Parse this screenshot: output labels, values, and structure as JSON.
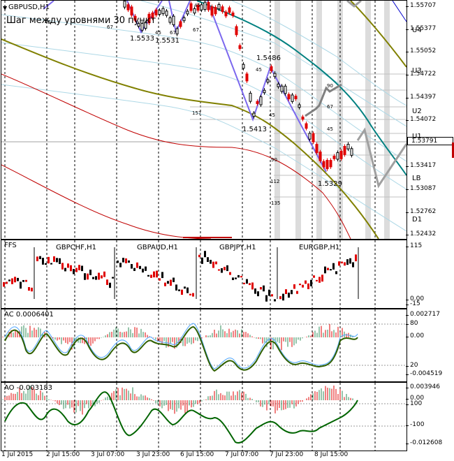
{
  "main": {
    "symbol_title": "GBPUSD,H1",
    "note": "Шаг между уровнями 30 пункт",
    "price_ticks": [
      "1.55707",
      "1.55377",
      "1.55052",
      "1.54722",
      "1.54397",
      "1.54072",
      "1.53791",
      "1.53417",
      "1.53087",
      "1.52762",
      "1.52432"
    ],
    "current_price": "1.53791",
    "levels": [
      "U4",
      "U3",
      "U2",
      "U1",
      "LB",
      "D1"
    ],
    "point_labels": [
      "1.5533",
      "1.5531",
      "1.5486",
      "1.5413",
      "1.5329"
    ],
    "fib_labels": [
      "45",
      "67",
      "45",
      "67",
      "157",
      "45",
      "90",
      "67",
      "45",
      "45",
      "90",
      "112",
      "135"
    ],
    "fib_top_labels": [
      "45",
      "67"
    ]
  },
  "fx_pane": {
    "title": "FFS",
    "symbols": [
      "GBPCHF,H1",
      "GBPAUD,H1",
      "GBPJPY,H1",
      "EURGBP,H1"
    ],
    "ticks": [
      "115",
      "0.00",
      "-15"
    ]
  },
  "ac_pane": {
    "title": "AC 0.0006401",
    "ticks": [
      "0.002717",
      "80",
      "0.00",
      "20",
      "-0.004519"
    ]
  },
  "ao_pane": {
    "title": "AO -0.003183",
    "ticks": [
      "0.003946",
      "0.00",
      "100",
      "-100",
      "-0.012608"
    ]
  },
  "x_axis": {
    "labels": [
      "1 Jul 2015",
      "2 Jul 15:00",
      "3 Jul 07:00",
      "3 Jul 23:00",
      "6 Jul 15:00",
      "7 Jul 07:00",
      "7 Jul 23:00",
      "8 Jul 15:00"
    ]
  },
  "colors": {
    "olive_ma": "#808000",
    "teal_ma": "#008080",
    "red_ma": "#c00000",
    "envelope": "#add8e6",
    "zigzag": "#7b68ee",
    "forecast": "#808080",
    "bull": "#000000",
    "bear": "#e00000",
    "ac_line": "#006400",
    "ao_line": "#006400"
  }
}
